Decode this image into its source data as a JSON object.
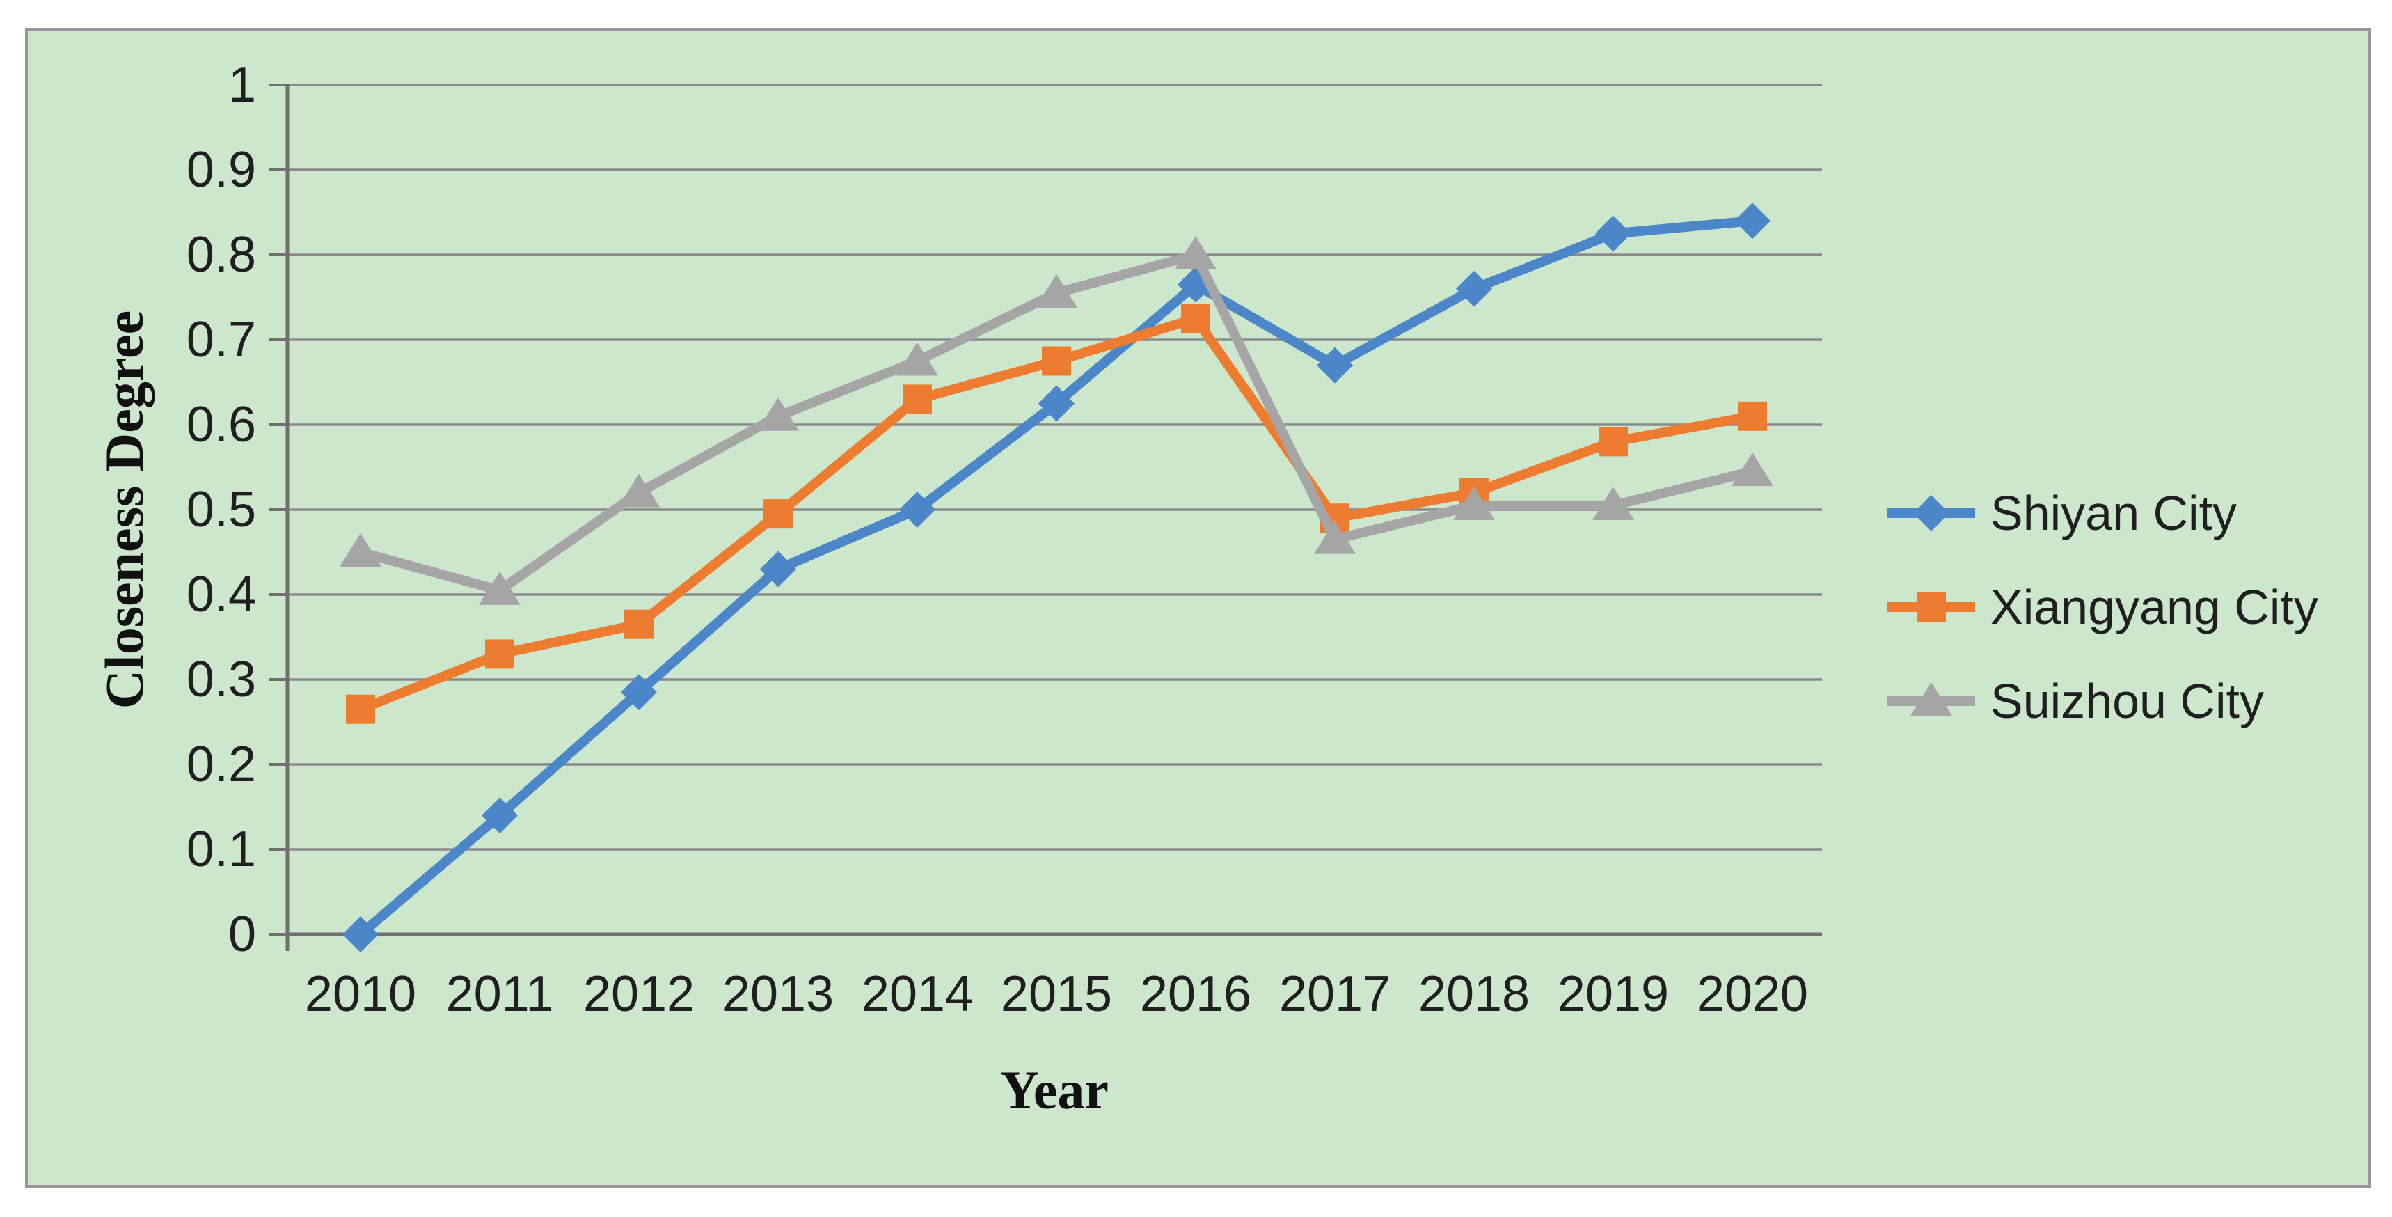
{
  "chart_data": {
    "type": "line",
    "title": "",
    "xlabel": "Year",
    "ylabel": "Closeness Degree",
    "categories": [
      "2010",
      "2011",
      "2012",
      "2013",
      "2014",
      "2015",
      "2016",
      "2017",
      "2018",
      "2019",
      "2020"
    ],
    "series": [
      {
        "name": "Shiyan City",
        "marker": "diamond",
        "color": "#4A86C8",
        "values": [
          0.0,
          0.14,
          0.285,
          0.43,
          0.5,
          0.625,
          0.765,
          0.67,
          0.76,
          0.825,
          0.84
        ]
      },
      {
        "name": "Xiangyang City",
        "marker": "square",
        "color": "#ED7C31",
        "values": [
          0.265,
          0.33,
          0.365,
          0.495,
          0.63,
          0.675,
          0.725,
          0.49,
          0.52,
          0.58,
          0.61
        ]
      },
      {
        "name": "Suizhou City",
        "marker": "triangle",
        "color": "#A5A5A5",
        "values": [
          0.45,
          0.405,
          0.52,
          0.61,
          0.675,
          0.755,
          0.8,
          0.465,
          0.505,
          0.505,
          0.545
        ]
      }
    ],
    "ylim": [
      0,
      1
    ],
    "y_ticks": [
      "0",
      "0.1",
      "0.2",
      "0.3",
      "0.4",
      "0.5",
      "0.6",
      "0.7",
      "0.8",
      "0.9",
      "1"
    ],
    "grid": "horizontal",
    "legend_position": "right"
  },
  "colors": {
    "page_background": "#ffffff",
    "panel_background": "#cde7cc",
    "panel_border": "#969696",
    "gridline": "#8a8a8a",
    "axis": "#6f6f6f",
    "text": "#1f1f1f"
  }
}
